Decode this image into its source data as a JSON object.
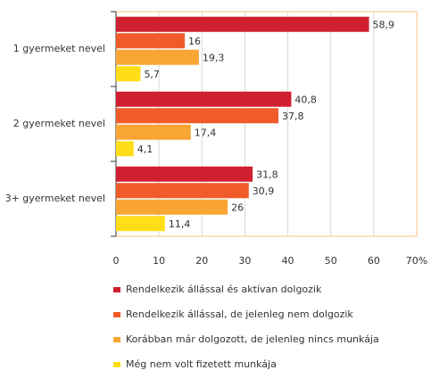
{
  "chart_data": {
    "type": "hbar",
    "categories": [
      "1 gyermeket nevel",
      "2 gyermeket nevel",
      "3+ gyermeket nevel"
    ],
    "series": [
      {
        "name": "Rendelkezik állással és aktívan dolgozik",
        "color": "#d01f2e",
        "values": [
          58.9,
          40.8,
          31.8
        ],
        "value_labels": [
          "58,9",
          "40,8",
          "31,8"
        ]
      },
      {
        "name": "Rendelkezik állással, de jelenleg nem dolgozik",
        "color": "#f15a29",
        "values": [
          16,
          37.8,
          30.9
        ],
        "value_labels": [
          "16",
          "37,8",
          "30,9"
        ]
      },
      {
        "name": "Korábban már dolgozott, de jelenleg nincs munkája",
        "color": "#f9a533",
        "values": [
          19.3,
          17.4,
          26
        ],
        "value_labels": [
          "19,3",
          "17,4",
          "26"
        ]
      },
      {
        "name": "Még nem volt fizetett munkája",
        "color": "#ffde17",
        "values": [
          5.7,
          4.1,
          11.4
        ],
        "value_labels": [
          "5,7",
          "4,1",
          "11,4"
        ]
      }
    ],
    "xlim": [
      0,
      70
    ],
    "xticks": [
      0,
      10,
      20,
      30,
      40,
      50,
      60,
      {
        "value": 70,
        "label": "70%"
      }
    ],
    "grid": true,
    "legend": "bottom"
  }
}
